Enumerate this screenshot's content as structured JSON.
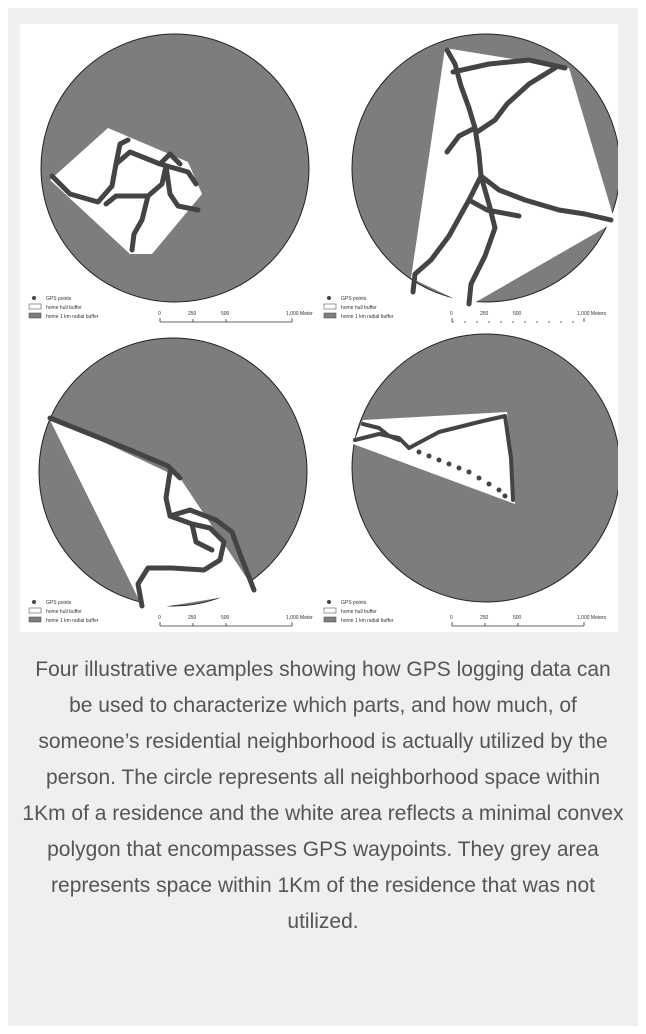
{
  "figure": {
    "legend": {
      "gps_points": "GPS points",
      "hull_buffer": "home hull buffer",
      "radial_buffer": "home 1 km radial buffer"
    },
    "scale": {
      "ticks": [
        "0",
        "250",
        "500"
      ],
      "end_label_meter": "1,000 Meter",
      "end_label_meters": "1,000 Meters"
    },
    "colors": {
      "unused_area": "#7d7d7d",
      "hull_area": "#ffffff",
      "gps_track": "#444444"
    }
  },
  "caption": "Four illustrative examples showing how GPS logging data can be used to characterize which parts, and how much, of someone’s residential neighborhood is actually utilized by the person. The circle represents all neighborhood space within 1Km of a residence and the white area reflects a minimal convex polygon that encompasses GPS waypoints. They grey area represents space within 1Km of the residence that was not utilized."
}
